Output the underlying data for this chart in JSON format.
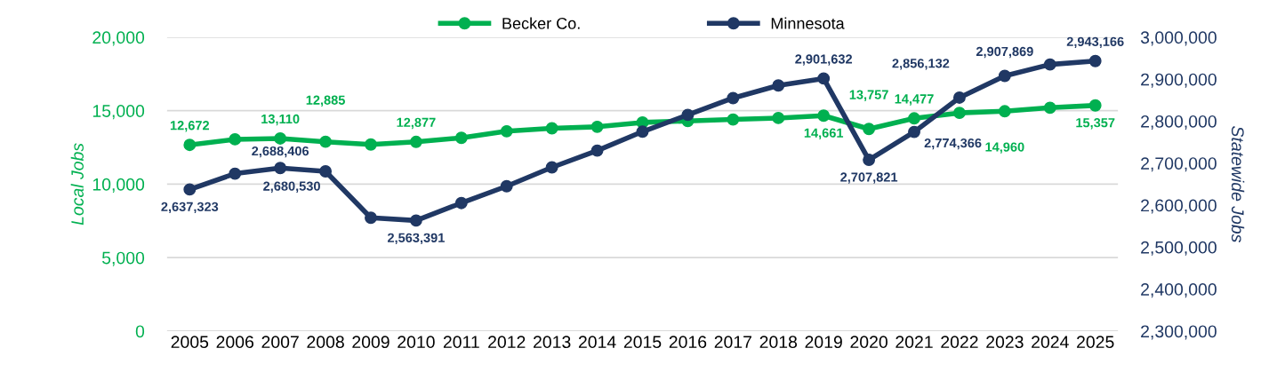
{
  "chart_data": {
    "type": "line",
    "categories": [
      "2005",
      "2006",
      "2007",
      "2008",
      "2009",
      "2010",
      "2011",
      "2012",
      "2013",
      "2014",
      "2015",
      "2016",
      "2017",
      "2018",
      "2019",
      "2020",
      "2021",
      "2022",
      "2023",
      "2024",
      "2025"
    ],
    "series": [
      {
        "name": "Becker Co.",
        "color": "#00b050",
        "axis": "y",
        "values": [
          12672,
          13050,
          13110,
          12885,
          12700,
          12877,
          13150,
          13600,
          13800,
          13900,
          14200,
          14300,
          14400,
          14500,
          14661,
          13757,
          14477,
          14850,
          14960,
          15200,
          15357
        ],
        "value_labels": [
          "12,672",
          null,
          "13,110",
          "12,885",
          null,
          "12,877",
          null,
          null,
          null,
          null,
          null,
          null,
          null,
          null,
          "14,661",
          "13,757",
          "14,477",
          null,
          "14,960",
          null,
          "15,357"
        ]
      },
      {
        "name": "Minnesota",
        "color": "#203864",
        "axis": "y2",
        "values": [
          2637323,
          2675000,
          2688406,
          2680530,
          2570000,
          2563391,
          2605000,
          2645000,
          2690000,
          2730000,
          2775000,
          2815000,
          2855000,
          2885000,
          2901632,
          2707821,
          2774366,
          2856132,
          2907869,
          2935000,
          2943166
        ],
        "value_labels": [
          "2,637,323",
          null,
          "2,688,406",
          "2,680,530",
          null,
          "2,563,391",
          null,
          null,
          null,
          null,
          null,
          null,
          null,
          null,
          "2,901,632",
          "2,707,821",
          "2,774,366",
          "2,856,132",
          "2,907,869",
          null,
          "2,943,166"
        ]
      }
    ],
    "ylabel": "Local Jobs",
    "y2label": "Statewide Jobs",
    "ylim": [
      0,
      20000
    ],
    "yticks": [
      {
        "value": 0,
        "label": "0"
      },
      {
        "value": 5000,
        "label": "5,000"
      },
      {
        "value": 10000,
        "label": "10,000"
      },
      {
        "value": 15000,
        "label": "15,000"
      },
      {
        "value": 20000,
        "label": "20,000"
      }
    ],
    "y2lim": [
      2300000,
      3000000
    ],
    "y2ticks": [
      {
        "value": 2300000,
        "label": "2,300,000"
      },
      {
        "value": 2400000,
        "label": "2,400,000"
      },
      {
        "value": 2500000,
        "label": "2,500,000"
      },
      {
        "value": 2600000,
        "label": "2,600,000"
      },
      {
        "value": 2700000,
        "label": "2,700,000"
      },
      {
        "value": 2800000,
        "label": "2,800,000"
      },
      {
        "value": 2900000,
        "label": "2,900,000"
      },
      {
        "value": 3000000,
        "label": "3,000,000"
      }
    ],
    "grid": "y",
    "legend": "top",
    "marker": "circle",
    "line_style": "solid"
  }
}
